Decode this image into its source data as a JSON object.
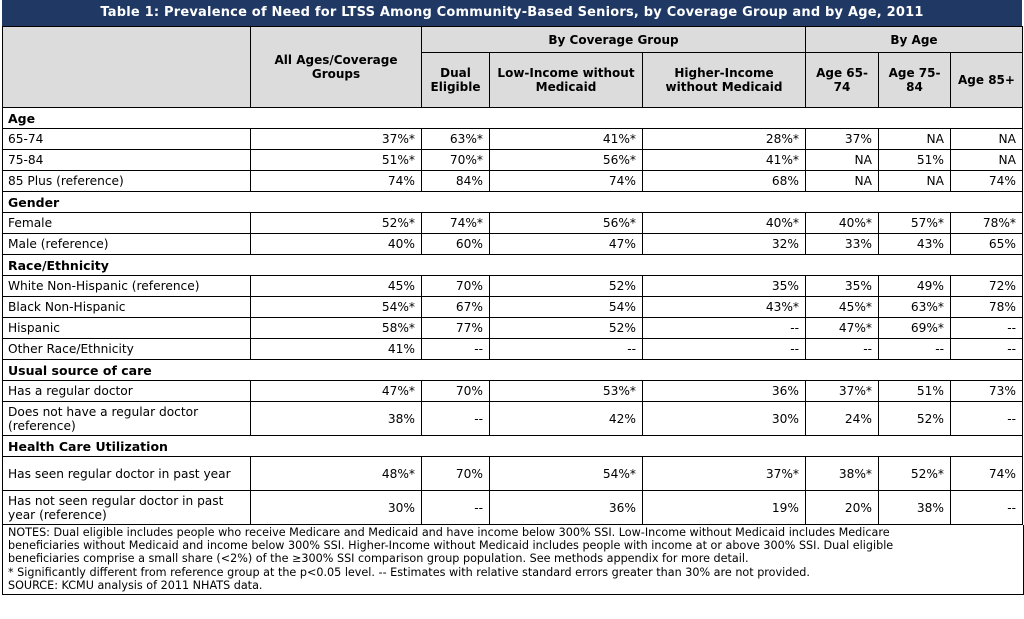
{
  "title": "Table 1:  Prevalence of Need for LTSS  Among Community-Based Seniors, by Coverage Group and by Age, 2011",
  "headers": {
    "all": "All Ages/Coverage Groups",
    "group_coverage": "By Coverage Group",
    "group_age": "By Age",
    "cols": [
      "Dual Eligible",
      "Low-Income without Medicaid",
      "Higher-Income without Medicaid",
      "Age 65-74",
      "Age 75-84",
      "Age 85+"
    ]
  },
  "sections": [
    {
      "name": "Age",
      "rows": [
        {
          "label": "65-74",
          "values": [
            "37%*",
            "63%*",
            "41%*",
            "28%*",
            "37%",
            "NA",
            "NA"
          ]
        },
        {
          "label": "75-84",
          "values": [
            "51%*",
            "70%*",
            "56%*",
            "41%*",
            "NA",
            "51%",
            "NA"
          ]
        },
        {
          "label": "85 Plus (reference)",
          "values": [
            "74%",
            "84%",
            "74%",
            "68%",
            "NA",
            "NA",
            "74%"
          ]
        }
      ]
    },
    {
      "name": "Gender",
      "rows": [
        {
          "label": "Female",
          "values": [
            "52%*",
            "74%*",
            "56%*",
            "40%*",
            "40%*",
            "57%*",
            "78%*"
          ]
        },
        {
          "label": "Male (reference)",
          "values": [
            "40%",
            "60%",
            "47%",
            "32%",
            "33%",
            "43%",
            "65%"
          ]
        }
      ]
    },
    {
      "name": "Race/Ethnicity",
      "rows": [
        {
          "label": "White Non-Hispanic (reference)",
          "values": [
            "45%",
            "70%",
            "52%",
            "35%",
            "35%",
            "49%",
            "72%"
          ]
        },
        {
          "label": "Black Non-Hispanic",
          "values": [
            "54%*",
            "67%",
            "54%",
            "43%*",
            "45%*",
            "63%*",
            "78%"
          ]
        },
        {
          "label": "Hispanic",
          "values": [
            "58%*",
            "77%",
            "52%",
            "--",
            "47%*",
            "69%*",
            "--"
          ]
        },
        {
          "label": "Other Race/Ethnicity",
          "values": [
            "41%",
            "--",
            "--",
            "--",
            "--",
            "--",
            "--"
          ]
        }
      ]
    },
    {
      "name": "Usual source of care",
      "rows": [
        {
          "label": "Has a regular doctor",
          "values": [
            "47%*",
            "70%",
            "53%*",
            "36%",
            "37%*",
            "51%",
            "73%"
          ]
        },
        {
          "label": "Does not have a regular doctor (reference)",
          "values": [
            "38%",
            "--",
            "42%",
            "30%",
            "24%",
            "52%",
            "--"
          ],
          "tall": true
        }
      ]
    },
    {
      "name": "Health Care Utilization",
      "rows": [
        {
          "label": "Has seen regular doctor in past year",
          "values": [
            "48%*",
            "70%",
            "54%*",
            "37%*",
            "38%*",
            "52%*",
            "74%"
          ],
          "tall": true
        },
        {
          "label": "Has not seen regular doctor in past year (reference)",
          "values": [
            "30%",
            "--",
            "36%",
            "19%",
            "20%",
            "38%",
            "--"
          ],
          "tall": true
        }
      ]
    }
  ],
  "notes": [
    "NOTES: Dual eligible includes people who receive Medicare and Medicaid and have income below 300% SSI. Low-Income without Medicaid includes Medicare",
    "beneficiaries without Medicaid and income below 300% SSI. Higher-Income without Medicaid includes people with income at or above 300% SSI. Dual eligible",
    "beneficiaries comprise a small share (<2%) of the ≥300% SSI comparison group population. See methods appendix for more detail.",
    "* Significantly different from reference group at the p<0.05 level. -- Estimates with relative standard errors greater than 30% are not provided.",
    "SOURCE: KCMU analysis of 2011 NHATS data."
  ]
}
